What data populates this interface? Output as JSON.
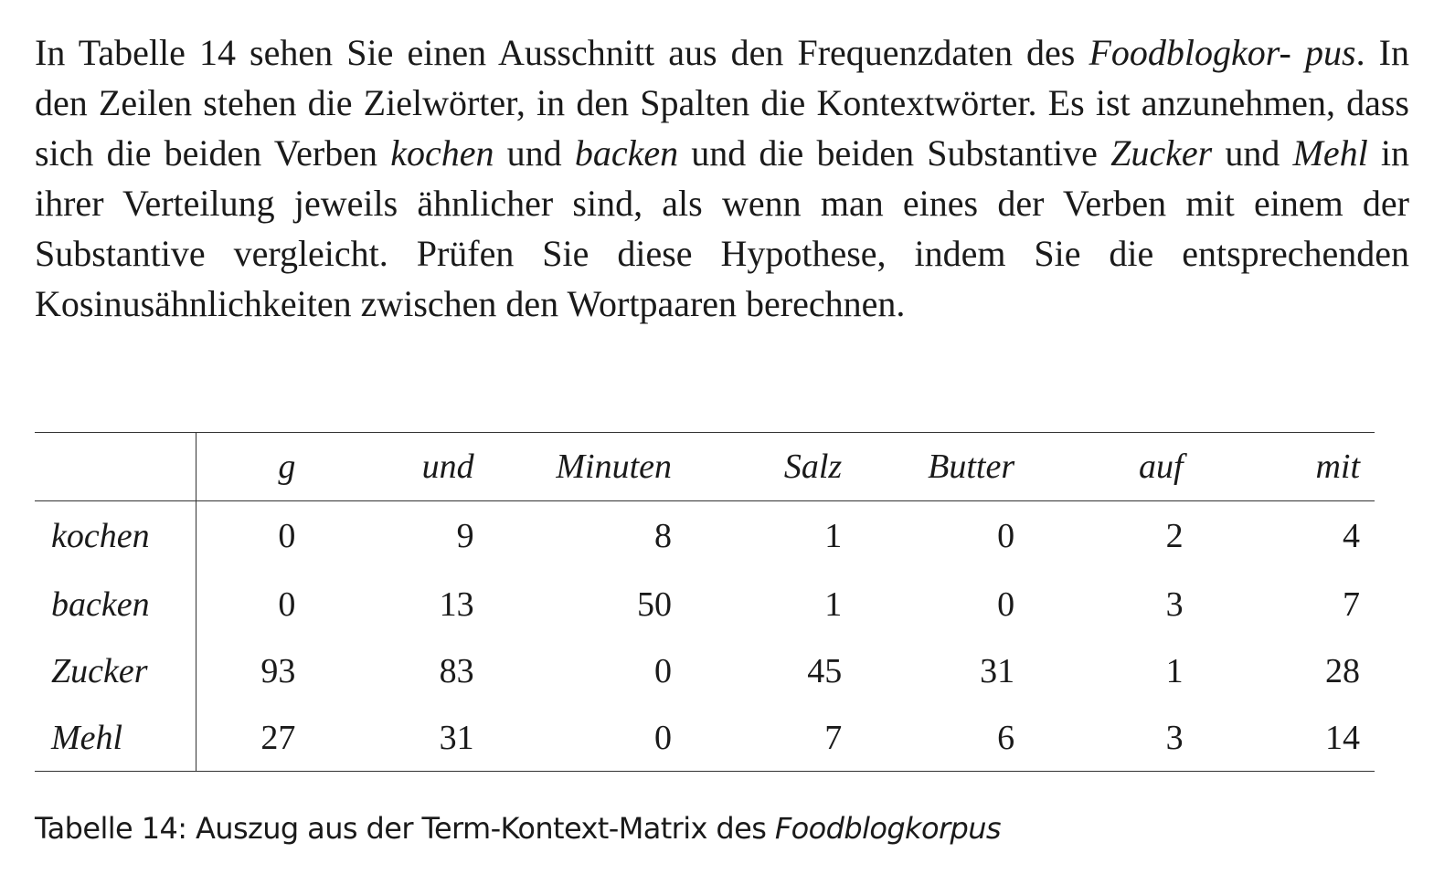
{
  "paragraph": {
    "s1": "In Tabelle 14 sehen Sie einen Ausschnitt aus den Frequenzdaten des ",
    "corpus_a": "Foodblogkor-",
    "corpus_b": "pus",
    "s2": ". In den Zeilen stehen die Zielwörter, in den Spalten die Kontextwörter. Es ist anzunehmen, dass sich die beiden Verben ",
    "w_kochen": "kochen",
    "s3": " und ",
    "w_backen": "backen",
    "s4": " und die beiden Substantive ",
    "w_zucker": "Zucker",
    "s5": " und ",
    "w_mehl": "Mehl",
    "s6": " in ihrer Verteilung jeweils ähnlicher sind, als wenn man eines der Verben mit einem der Substantive vergleicht. Prüfen Sie diese Hypothese, indem Sie die entsprechenden Kosinusähnlichkeiten zwischen den Wortpaaren berechnen."
  },
  "table": {
    "columns": [
      "g",
      "und",
      "Minuten",
      "Salz",
      "Butter",
      "auf",
      "mit"
    ],
    "rows": [
      {
        "label": "kochen",
        "values": [
          "0",
          "9",
          "8",
          "1",
          "0",
          "2",
          "4"
        ]
      },
      {
        "label": "backen",
        "values": [
          "0",
          "13",
          "50",
          "1",
          "0",
          "3",
          "7"
        ]
      },
      {
        "label": "Zucker",
        "values": [
          "93",
          "83",
          "0",
          "45",
          "31",
          "1",
          "28"
        ]
      },
      {
        "label": "Mehl",
        "values": [
          "27",
          "31",
          "0",
          "7",
          "6",
          "3",
          "14"
        ]
      }
    ]
  },
  "caption": {
    "text": "Tabelle 14: Auszug aus der Term-Kontext-Matrix des ",
    "corpus": "Foodblogkorpus"
  }
}
